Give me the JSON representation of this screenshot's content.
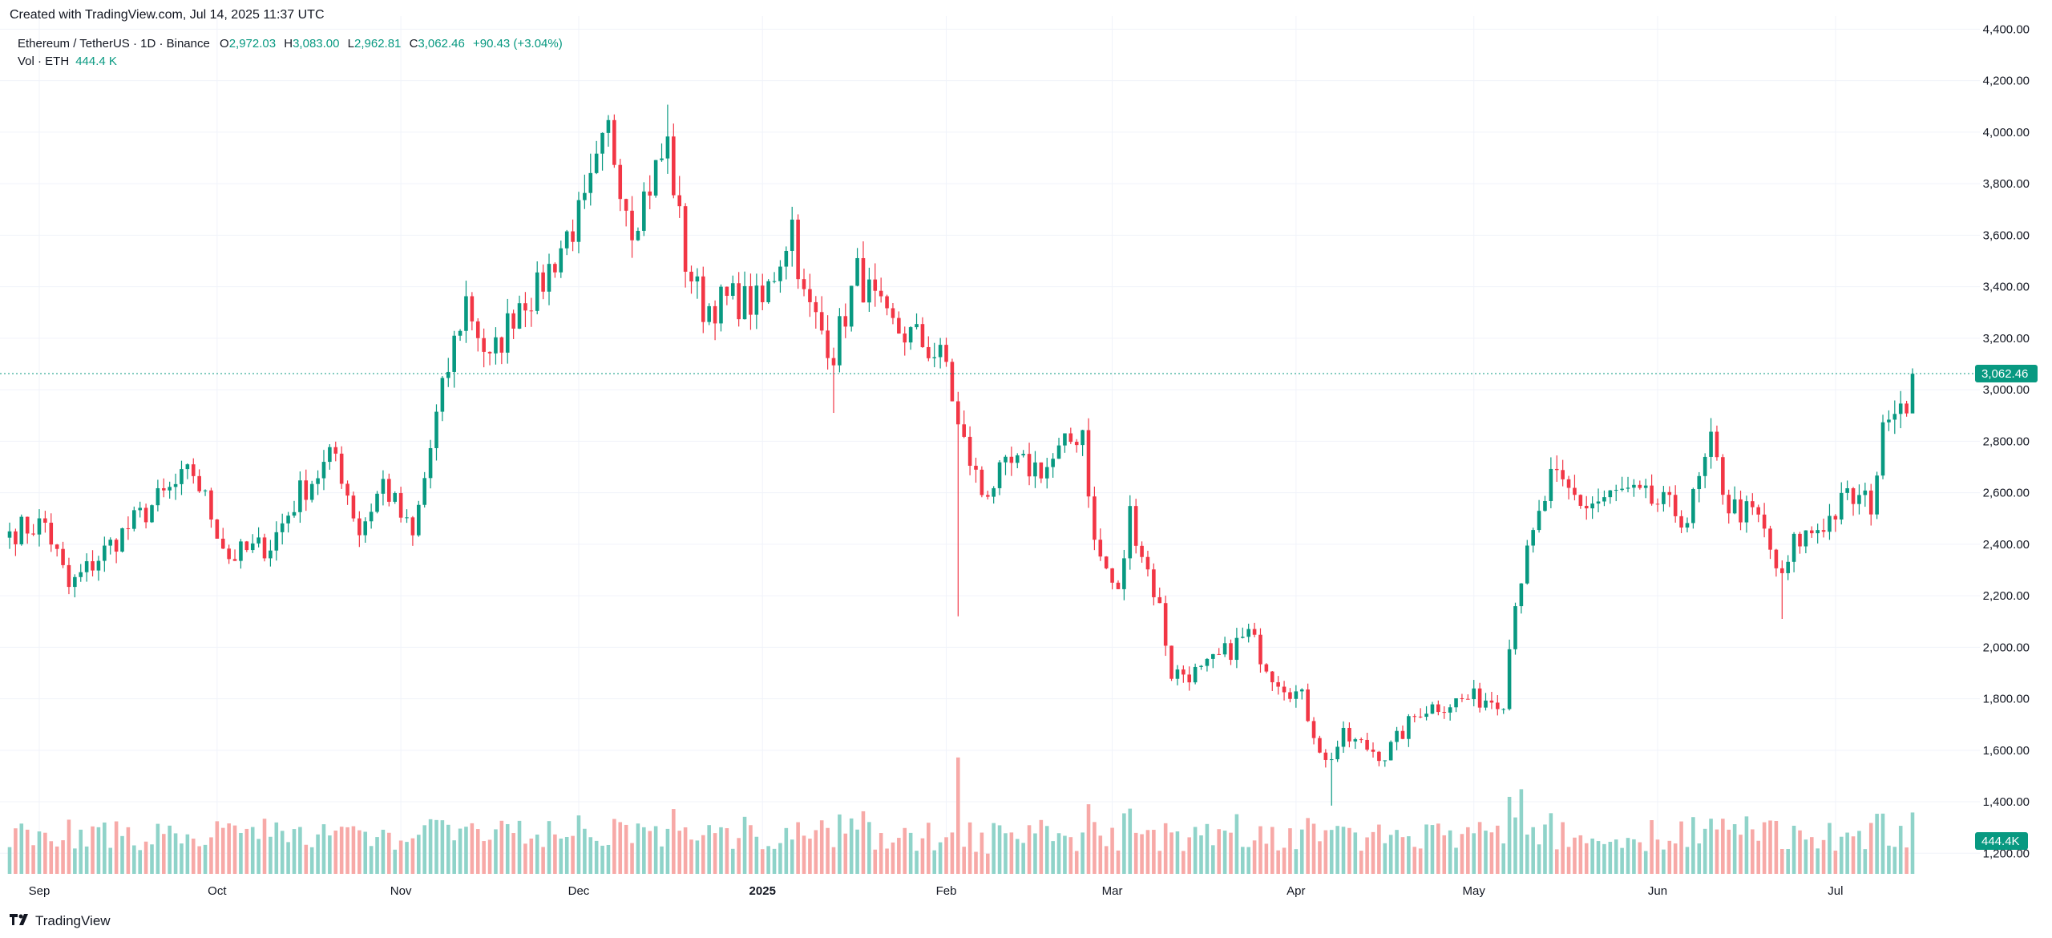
{
  "credit": "Created with TradingView.com, Jul 14, 2025 11:37 UTC",
  "brand": "TradingView",
  "legend": {
    "symbol": "Ethereum / TetherUS · 1D · Binance",
    "open_label": "O",
    "open": "2,972.03",
    "high_label": "H",
    "high": "3,083.00",
    "low_label": "L",
    "low": "2,962.81",
    "close_label": "C",
    "close": "3,062.46",
    "change": "+90.43 (+3.04%)",
    "volume_label": "Vol · ETH",
    "volume": "444.4 K"
  },
  "colors": {
    "up": "#089981",
    "down": "#f23645",
    "vol_up": "#8fd3c9",
    "vol_down": "#f7a9a7",
    "grid": "#f0f3fa",
    "axis_text": "#131722"
  },
  "price_tag": "3,062.46",
  "volume_tag": "444.4K",
  "chart_data": {
    "type": "candlestick",
    "x_range": [
      "2024-08-27",
      "2025-07-14"
    ],
    "y_range": [
      1120,
      4420
    ],
    "y_ticks": [
      "4,400.00",
      "4,200.00",
      "4,000.00",
      "3,800.00",
      "3,600.00",
      "3,400.00",
      "3,200.00",
      "3,000.00",
      "2,800.00",
      "2,600.00",
      "2,400.00",
      "2,200.00",
      "2,000.00",
      "1,800.00",
      "1,600.00",
      "1,400.00",
      "1,200.00"
    ],
    "x_ticks": [
      {
        "label": "Sep",
        "date": "2024-09-01"
      },
      {
        "label": "Oct",
        "date": "2024-10-01"
      },
      {
        "label": "Nov",
        "date": "2024-11-01"
      },
      {
        "label": "Dec",
        "date": "2024-12-01"
      },
      {
        "label": "2025",
        "date": "2025-01-01",
        "bold": true
      },
      {
        "label": "Feb",
        "date": "2025-02-01"
      },
      {
        "label": "Mar",
        "date": "2025-03-01"
      },
      {
        "label": "Apr",
        "date": "2025-04-01"
      },
      {
        "label": "May",
        "date": "2025-05-01"
      },
      {
        "label": "Jun",
        "date": "2025-06-01"
      },
      {
        "label": "Jul",
        "date": "2025-07-01"
      }
    ],
    "last_price": 3062.46,
    "close_anchors": [
      [
        "2024-08-27",
        2450
      ],
      [
        "2024-09-02",
        2480
      ],
      [
        "2024-09-06",
        2230
      ],
      [
        "2024-09-14",
        2420
      ],
      [
        "2024-09-20",
        2550
      ],
      [
        "2024-09-27",
        2680
      ],
      [
        "2024-10-03",
        2350
      ],
      [
        "2024-10-10",
        2400
      ],
      [
        "2024-10-15",
        2600
      ],
      [
        "2024-10-21",
        2750
      ],
      [
        "2024-10-25",
        2450
      ],
      [
        "2024-10-29",
        2640
      ],
      [
        "2024-11-03",
        2420
      ],
      [
        "2024-11-07",
        2890
      ],
      [
        "2024-11-10",
        3180
      ],
      [
        "2024-11-12",
        3350
      ],
      [
        "2024-11-16",
        3100
      ],
      [
        "2024-11-21",
        3350
      ],
      [
        "2024-11-24",
        3380
      ],
      [
        "2024-11-29",
        3600
      ],
      [
        "2024-12-02",
        3700
      ],
      [
        "2024-12-06",
        4000
      ],
      [
        "2024-12-10",
        3650
      ],
      [
        "2024-12-16",
        3950
      ],
      [
        "2024-12-19",
        3500
      ],
      [
        "2024-12-22",
        3320
      ],
      [
        "2024-12-27",
        3350
      ],
      [
        "2025-01-01",
        3330
      ],
      [
        "2025-01-06",
        3650
      ],
      [
        "2025-01-08",
        3350
      ],
      [
        "2025-01-13",
        3150
      ],
      [
        "2025-01-17",
        3450
      ],
      [
        "2025-01-22",
        3250
      ],
      [
        "2025-01-27",
        3200
      ],
      [
        "2025-02-01",
        3100
      ],
      [
        "2025-02-03",
        2850
      ],
      [
        "2025-02-07",
        2600
      ],
      [
        "2025-02-12",
        2700
      ],
      [
        "2025-02-18",
        2700
      ],
      [
        "2025-02-24",
        2850
      ],
      [
        "2025-02-26",
        2400
      ],
      [
        "2025-03-02",
        2200
      ],
      [
        "2025-03-04",
        2520
      ],
      [
        "2025-03-09",
        2150
      ],
      [
        "2025-03-11",
        1900
      ],
      [
        "2025-03-16",
        1900
      ],
      [
        "2025-03-24",
        2050
      ],
      [
        "2025-03-28",
        1900
      ],
      [
        "2025-04-02",
        1800
      ],
      [
        "2025-04-06",
        1550
      ],
      [
        "2025-04-09",
        1650
      ],
      [
        "2025-04-16",
        1580
      ],
      [
        "2025-04-22",
        1760
      ],
      [
        "2025-04-30",
        1800
      ],
      [
        "2025-05-06",
        1800
      ],
      [
        "2025-05-08",
        2200
      ],
      [
        "2025-05-12",
        2500
      ],
      [
        "2025-05-14",
        2650
      ],
      [
        "2025-05-20",
        2550
      ],
      [
        "2025-05-26",
        2600
      ],
      [
        "2025-06-02",
        2550
      ],
      [
        "2025-06-06",
        2500
      ],
      [
        "2025-06-10",
        2780
      ],
      [
        "2025-06-13",
        2550
      ],
      [
        "2025-06-18",
        2500
      ],
      [
        "2025-06-22",
        2250
      ],
      [
        "2025-06-24",
        2400
      ],
      [
        "2025-06-30",
        2500
      ],
      [
        "2025-07-03",
        2580
      ],
      [
        "2025-07-07",
        2560
      ],
      [
        "2025-07-10",
        2950
      ],
      [
        "2025-07-12",
        2960
      ],
      [
        "2025-07-13",
        2972
      ],
      [
        "2025-07-14",
        3062
      ]
    ],
    "notable_wicks": [
      {
        "date": "2024-12-16",
        "high": 4107
      },
      {
        "date": "2025-02-03",
        "low": 2120
      },
      {
        "date": "2025-01-13",
        "low": 2910
      },
      {
        "date": "2025-04-07",
        "low": 1385
      },
      {
        "date": "2025-06-22",
        "low": 2110
      },
      {
        "date": "2025-07-14",
        "high": 3083
      }
    ],
    "volume_axis": {
      "bottom_px_price": 1120
    },
    "notable_volumes": [
      {
        "date": "2025-02-03",
        "value": 2.2
      },
      {
        "date": "2025-05-09",
        "value": 1.6
      }
    ]
  }
}
